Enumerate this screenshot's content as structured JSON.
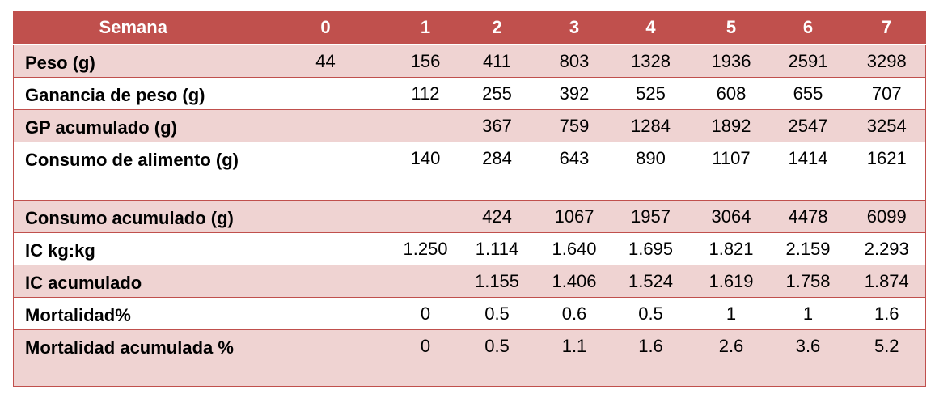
{
  "table": {
    "header": [
      "Semana",
      "0",
      "1",
      "2",
      "3",
      "4",
      "5",
      "6",
      "7"
    ],
    "rows": [
      {
        "label": "Peso (g)",
        "values": [
          "44",
          "156",
          "411",
          "803",
          "1328",
          "1936",
          "2591",
          "3298"
        ]
      },
      {
        "label": "Ganancia de peso (g)",
        "values": [
          "",
          "112",
          "255",
          "392",
          "525",
          "608",
          "655",
          "707"
        ]
      },
      {
        "label": "GP acumulado (g)",
        "values": [
          "",
          "",
          "367",
          "759",
          "1284",
          "1892",
          "2547",
          "3254"
        ]
      },
      {
        "label": "Consumo de alimento (g)",
        "values": [
          "",
          "140",
          "284",
          "643",
          "890",
          "1107",
          "1414",
          "1621"
        ]
      },
      {
        "label": "Consumo acumulado (g)",
        "values": [
          "",
          "",
          "424",
          "1067",
          "1957",
          "3064",
          "4478",
          "6099"
        ]
      },
      {
        "label": "IC kg:kg",
        "values": [
          "",
          "1.250",
          "1.114",
          "1.640",
          "1.695",
          "1.821",
          "2.159",
          "2.293"
        ]
      },
      {
        "label": "IC acumulado",
        "values": [
          "",
          "",
          "1.155",
          "1.406",
          "1.524",
          "1.619",
          "1.758",
          "1.874"
        ]
      },
      {
        "label": "Mortalidad%",
        "values": [
          "",
          "0",
          "0.5",
          "0.6",
          "0.5",
          "1",
          "1",
          "1.6"
        ]
      },
      {
        "label": "Mortalidad acumulada %",
        "values": [
          "",
          "0",
          "0.5",
          "1.1",
          "1.6",
          "2.6",
          "3.6",
          "5.2"
        ]
      }
    ]
  }
}
